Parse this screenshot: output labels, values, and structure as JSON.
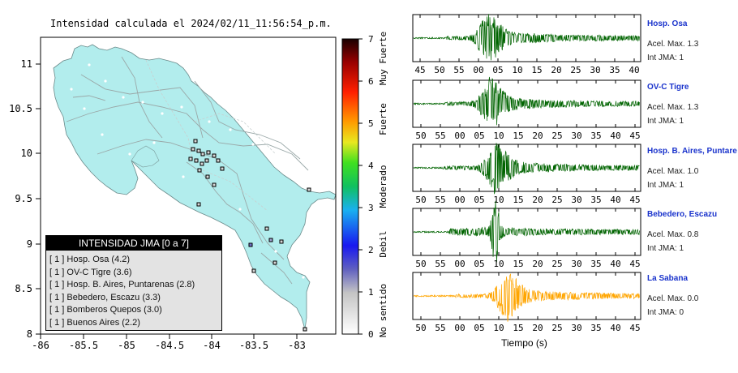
{
  "map": {
    "title": "Intensidad calculada el 2024/02/11_11:56:54_p.m.",
    "x_ticks": [
      "-86",
      "-85.5",
      "-85",
      "-84.5",
      "-84",
      "-83.5",
      "-83"
    ],
    "y_ticks": [
      "11",
      "10.5",
      "10",
      "9.5",
      "9",
      "8.5",
      "8"
    ],
    "land_color": "#b2eded",
    "water_color": "#ffffff"
  },
  "colorbar": {
    "ticks": [
      "0",
      "1",
      "2",
      "3",
      "4",
      "5",
      "6",
      "7"
    ],
    "labels": [
      "No sentido",
      "Debil",
      "Moderado",
      "Fuerte",
      "Muy Fuerte"
    ]
  },
  "legend": {
    "title": "INTENSIDAD JMA [0 a 7]",
    "items": [
      "[ 1 ]  Hosp. Osa (4.2)",
      "[ 1 ]  OV-C Tigre (3.6)",
      "[ 1 ]  Hosp. B. Aires, Puntarenas (2.8)",
      "[ 1 ]  Bebedero, Escazu (3.3)",
      "[ 1 ]  Bomberos Quepos (3.0)",
      "[ 1 ]  Buenos Aires (2.2)"
    ]
  },
  "stations": [
    {
      "name": "Hosp. Osa",
      "acel": "Acel. Max. 1.3",
      "int": "Int JMA: 1",
      "color": "#006400",
      "ticks": [
        "45",
        "50",
        "55",
        "00",
        "05",
        "10",
        "15",
        "20",
        "25",
        "30",
        "35",
        "40"
      ]
    },
    {
      "name": "OV-C Tigre",
      "acel": "Acel. Max. 1.3",
      "int": "Int JMA: 1",
      "color": "#006400",
      "ticks": [
        "50",
        "55",
        "00",
        "05",
        "10",
        "15",
        "20",
        "25",
        "30",
        "35",
        "40",
        "45"
      ]
    },
    {
      "name": "Hosp. B. Aires, Puntare",
      "acel": "Acel. Max. 1.0",
      "int": "Int JMA: 1",
      "color": "#006400",
      "ticks": [
        "50",
        "55",
        "00",
        "05",
        "10",
        "15",
        "20",
        "25",
        "30",
        "35",
        "40",
        "45"
      ]
    },
    {
      "name": "Bebedero, Escazu",
      "acel": "Acel. Max. 0.8",
      "int": "Int JMA: 1",
      "color": "#006400",
      "ticks": [
        "50",
        "55",
        "00",
        "05",
        "10",
        "15",
        "20",
        "25",
        "30",
        "35",
        "40",
        "45"
      ]
    },
    {
      "name": "La Sabana",
      "acel": "Acel. Max. 0.0",
      "int": "Int JMA: 0",
      "color": "#ffa500",
      "ticks": [
        "50",
        "55",
        "00",
        "05",
        "10",
        "15",
        "20",
        "25",
        "30",
        "35",
        "40",
        "45"
      ]
    }
  ],
  "xaxis_title": "Tiempo (s)",
  "chart_data": [
    {
      "type": "scatter",
      "title": "Intensidad calculada el 2024/02/11_11:56:54_p.m.",
      "xlim": [
        -86,
        -82.5
      ],
      "ylim": [
        8,
        11.3
      ],
      "legend_title": "INTENSIDAD JMA [0 a 7]",
      "legend_placement": "bottom-left",
      "stations": [
        {
          "name": "Hosp. Osa",
          "value": 4.2
        },
        {
          "name": "OV-C Tigre",
          "value": 3.6
        },
        {
          "name": "Hosp. B. Aires, Puntarenas",
          "value": 2.8
        },
        {
          "name": "Bebedero, Escazu",
          "value": 3.3
        },
        {
          "name": "Bomberos Quepos",
          "value": 3.0
        },
        {
          "name": "Buenos Aires",
          "value": 2.2
        }
      ]
    },
    {
      "type": "line",
      "xlabel": "Tiempo (s)",
      "series": [
        {
          "name": "Hosp. Osa",
          "acel_max": 1.3,
          "int_jma": 1
        },
        {
          "name": "OV-C Tigre",
          "acel_max": 1.3,
          "int_jma": 1
        },
        {
          "name": "Hosp. B. Aires, Puntare",
          "acel_max": 1.0,
          "int_jma": 1
        },
        {
          "name": "Bebedero, Escazu",
          "acel_max": 0.8,
          "int_jma": 1
        },
        {
          "name": "La Sabana",
          "acel_max": 0.0,
          "int_jma": 0
        }
      ]
    }
  ]
}
